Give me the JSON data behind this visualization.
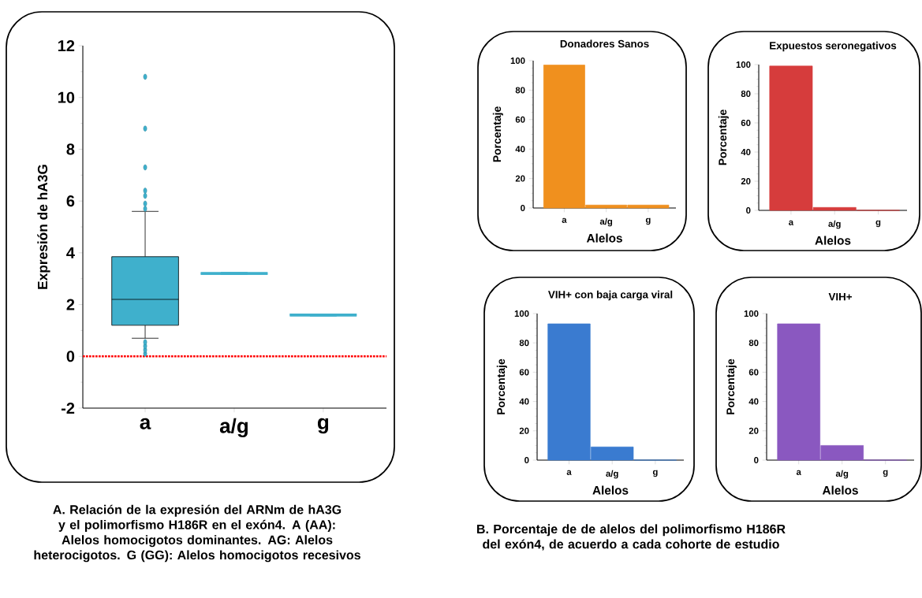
{
  "chart_data": [
    {
      "type": "box",
      "ylabel": "Expresión de hA3G",
      "categories": [
        "a",
        "a/g",
        "g"
      ],
      "color": "#3fb0cc",
      "boxes": [
        {
          "low": 0.7,
          "q1": 1.2,
          "median": 2.2,
          "q3": 3.85,
          "high": 5.6,
          "outliers": [
            0.1,
            0.25,
            0.4,
            0.55,
            5.7,
            5.9,
            6.2,
            6.4,
            7.3,
            8.8,
            10.8
          ]
        },
        {
          "low": 3.2,
          "q1": 3.2,
          "median": 3.2,
          "q3": 3.2,
          "high": 3.2
        },
        {
          "low": 1.6,
          "q1": 1.6,
          "median": 1.6,
          "q3": 1.6,
          "high": 1.6
        }
      ],
      "ylim": [
        -2,
        12
      ],
      "yticks": [
        -2,
        0,
        2,
        4,
        6,
        8,
        10,
        12
      ],
      "ref_lines": [
        {
          "axis": "y",
          "value": 0,
          "color": "#ff0000",
          "line_style": "dotted"
        }
      ],
      "annotations": [
        "A. Relación de la expresión del ARNm de hA3G y el polimorfismo H186R en el exón4. A (AA): Alelos homocigotos dominantes. AG: Alelos heterocigotos. G (GG): Alelos homocigotos recesivos"
      ]
    },
    {
      "type": "bar",
      "title": "Donadores Sanos",
      "xlabel": "Alelos",
      "ylabel": "Porcentaje",
      "categories": [
        "a",
        "a/g",
        "g"
      ],
      "values": [
        97,
        2,
        2
      ],
      "color": "#f0901e",
      "ylim": [
        0,
        100
      ],
      "yticks": [
        0,
        20,
        40,
        60,
        80,
        100
      ],
      "annotations": [
        "B. Porcentaje de de alelos del polimorfismo H186R del exón4, de acuerdo a  cada cohorte de estudio"
      ]
    },
    {
      "type": "bar",
      "title": "Expuestos seronegativos",
      "xlabel": "Alelos",
      "ylabel": "Porcentaje",
      "categories": [
        "a",
        "a/g",
        "g"
      ],
      "values": [
        99,
        2,
        0
      ],
      "color": "#d63c3c",
      "ylim": [
        0,
        100
      ],
      "yticks": [
        0,
        20,
        40,
        60,
        80,
        100
      ]
    },
    {
      "type": "bar",
      "title": "VIH+ con baja carga viral",
      "xlabel": "Alelos",
      "ylabel": "Porcentaje",
      "categories": [
        "a",
        "a/g",
        "g"
      ],
      "values": [
        93,
        9,
        0
      ],
      "color": "#3a7bd0",
      "ylim": [
        0,
        100
      ],
      "yticks": [
        0,
        20,
        40,
        60,
        80,
        100
      ]
    },
    {
      "type": "bar",
      "title": "VIH+",
      "xlabel": "Alelos",
      "ylabel": "Porcentaje",
      "categories": [
        "a",
        "a/g",
        "g"
      ],
      "values": [
        93,
        10,
        0
      ],
      "color": "#8a58c0",
      "ylim": [
        0,
        100
      ],
      "yticks": [
        0,
        20,
        40,
        60,
        80,
        100
      ]
    }
  ]
}
